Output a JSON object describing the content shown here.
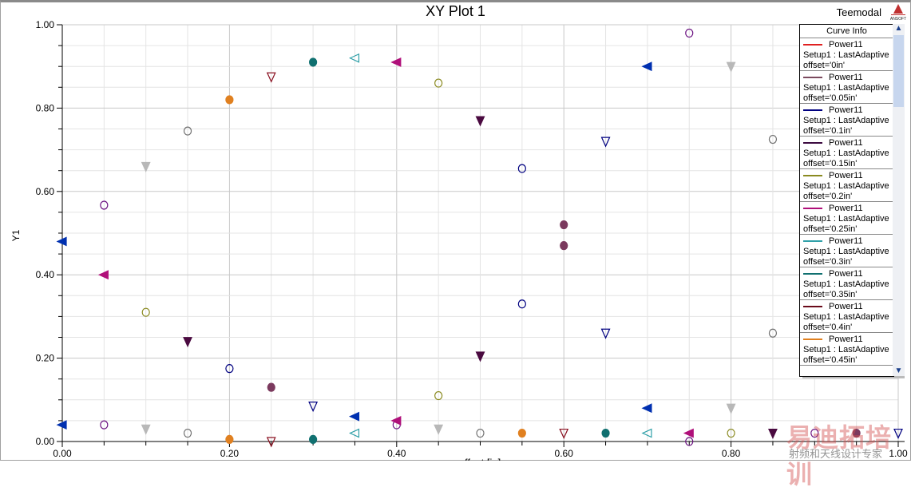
{
  "window": {
    "title": "XY Plot 1",
    "brand": "Teemodal",
    "logo_text": "ANSOFT"
  },
  "legend": {
    "header": "Curve Info",
    "items": [
      {
        "name": "Power11",
        "setup": "Setup1 : LastAdaptive",
        "offset": "offset='0in'",
        "color": "#e02020"
      },
      {
        "name": "Power11",
        "setup": "Setup1 : LastAdaptive",
        "offset": "offset='0.05in'",
        "color": "#7b4a5e"
      },
      {
        "name": "Power11",
        "setup": "Setup1 : LastAdaptive",
        "offset": "offset='0.1in'",
        "color": "#000080"
      },
      {
        "name": "Power11",
        "setup": "Setup1 : LastAdaptive",
        "offset": "offset='0.15in'",
        "color": "#3c0a40"
      },
      {
        "name": "Power11",
        "setup": "Setup1 : LastAdaptive",
        "offset": "offset='0.2in'",
        "color": "#8a8a20"
      },
      {
        "name": "Power11",
        "setup": "Setup1 : LastAdaptive",
        "offset": "offset='0.25in'",
        "color": "#b0107a"
      },
      {
        "name": "Power11",
        "setup": "Setup1 : LastAdaptive",
        "offset": "offset='0.3in'",
        "color": "#30a0a8"
      },
      {
        "name": "Power11",
        "setup": "Setup1 : LastAdaptive",
        "offset": "offset='0.35in'",
        "color": "#107070"
      },
      {
        "name": "Power11",
        "setup": "Setup1 : LastAdaptive",
        "offset": "offset='0.4in'",
        "color": "#6a0a1a"
      },
      {
        "name": "Power11",
        "setup": "Setup1 : LastAdaptive",
        "offset": "offset='0.45in'",
        "color": "#e08020"
      }
    ]
  },
  "watermark": {
    "main": "易迪拓培训",
    "sub": "射频和天线设计专家"
  },
  "chart_data": {
    "type": "scatter",
    "title": "XY Plot 1",
    "xlabel": "offset [in]",
    "ylabel": "Y1",
    "xlim": [
      0,
      1
    ],
    "ylim": [
      0,
      1
    ],
    "xticks": [
      "0.00",
      "0.20",
      "0.40",
      "0.60",
      "0.80",
      "1.00"
    ],
    "yticks": [
      "0.00",
      "0.20",
      "0.40",
      "0.60",
      "0.80",
      "1.00"
    ],
    "grid": true,
    "legend_position": "right",
    "series": [
      {
        "name": "navy open circle",
        "color": "#000080",
        "marker": "circle",
        "filled": false,
        "points": [
          [
            0.2,
            0.175
          ],
          [
            0.55,
            0.655
          ],
          [
            0.55,
            0.33
          ]
        ]
      },
      {
        "name": "gray open circle",
        "color": "#707070",
        "marker": "circle",
        "filled": false,
        "points": [
          [
            0.15,
            0.745
          ],
          [
            0.15,
            0.02
          ],
          [
            0.5,
            0.02
          ],
          [
            0.85,
            0.725
          ],
          [
            0.85,
            0.26
          ]
        ]
      },
      {
        "name": "purple open circle",
        "color": "#6a1080",
        "marker": "circle",
        "filled": false,
        "points": [
          [
            0.05,
            0.567
          ],
          [
            0.05,
            0.04
          ],
          [
            0.4,
            0.04
          ],
          [
            0.75,
            0.98
          ],
          [
            0.75,
            0.0
          ],
          [
            0.9,
            0.02
          ]
        ]
      },
      {
        "name": "olive open circle",
        "color": "#8a8a20",
        "marker": "circle",
        "filled": false,
        "points": [
          [
            0.1,
            0.31
          ],
          [
            0.45,
            0.86
          ],
          [
            0.45,
            0.11
          ],
          [
            0.8,
            0.02
          ]
        ]
      },
      {
        "name": "orange filled circle",
        "color": "#e08020",
        "marker": "circle",
        "filled": true,
        "points": [
          [
            0.2,
            0.82
          ],
          [
            0.2,
            0.005
          ],
          [
            0.55,
            0.02
          ]
        ]
      },
      {
        "name": "teal filled circle",
        "color": "#107070",
        "marker": "circle",
        "filled": true,
        "points": [
          [
            0.3,
            0.91
          ],
          [
            0.3,
            0.005
          ],
          [
            0.65,
            0.02
          ]
        ]
      },
      {
        "name": "mauve filled circle",
        "color": "#7b3a5e",
        "marker": "circle",
        "filled": true,
        "points": [
          [
            0.25,
            0.13
          ],
          [
            0.6,
            0.52
          ],
          [
            0.6,
            0.47
          ],
          [
            0.95,
            0.02
          ]
        ]
      },
      {
        "name": "gray filled down-triangle",
        "color": "#b8b8b8",
        "marker": "down",
        "filled": true,
        "points": [
          [
            0.1,
            0.66
          ],
          [
            0.1,
            0.03
          ],
          [
            0.45,
            0.03
          ],
          [
            0.8,
            0.9
          ],
          [
            0.8,
            0.08
          ]
        ]
      },
      {
        "name": "dark purple filled down-triangle",
        "color": "#4a0a40",
        "marker": "down",
        "filled": true,
        "points": [
          [
            0.15,
            0.24
          ],
          [
            0.5,
            0.77
          ],
          [
            0.5,
            0.205
          ],
          [
            0.85,
            0.02
          ]
        ]
      },
      {
        "name": "maroon open down-triangle",
        "color": "#8a1020",
        "marker": "down",
        "filled": false,
        "points": [
          [
            0.25,
            0.875
          ],
          [
            0.25,
            0.0
          ],
          [
            0.6,
            0.02
          ]
        ]
      },
      {
        "name": "navy open down-triangle",
        "color": "#000080",
        "marker": "down",
        "filled": false,
        "points": [
          [
            0.3,
            0.085
          ],
          [
            0.65,
            0.72
          ],
          [
            0.65,
            0.26
          ],
          [
            1.0,
            0.02
          ]
        ]
      },
      {
        "name": "blue filled left-triangle",
        "color": "#0030b0",
        "marker": "left",
        "filled": true,
        "points": [
          [
            0.0,
            0.48
          ],
          [
            0.0,
            0.04
          ],
          [
            0.35,
            0.06
          ],
          [
            0.7,
            0.9
          ],
          [
            0.7,
            0.08
          ]
        ]
      },
      {
        "name": "teal open left-triangle",
        "color": "#30a0a8",
        "marker": "left",
        "filled": false,
        "points": [
          [
            0.35,
            0.92
          ],
          [
            0.35,
            0.02
          ],
          [
            0.7,
            0.02
          ]
        ]
      },
      {
        "name": "magenta filled left-triangle",
        "color": "#b0107a",
        "marker": "left",
        "filled": true,
        "points": [
          [
            0.05,
            0.4
          ],
          [
            0.4,
            0.91
          ],
          [
            0.4,
            0.05
          ],
          [
            0.75,
            0.02
          ]
        ]
      }
    ]
  }
}
